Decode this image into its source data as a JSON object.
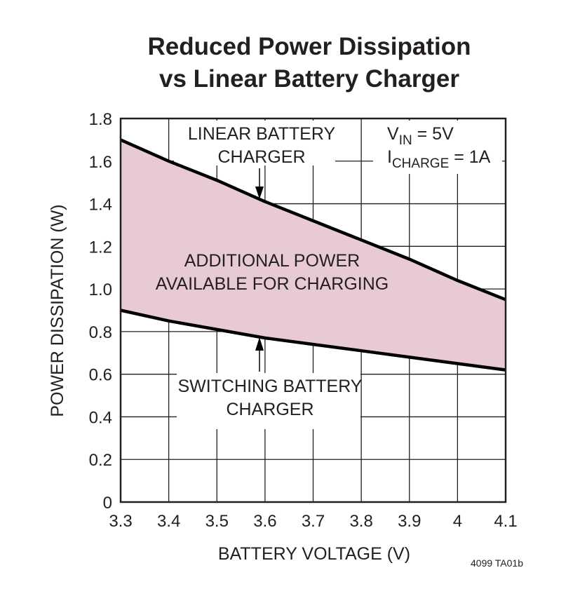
{
  "chart_data": {
    "type": "area",
    "title": [
      "Reduced Power Dissipation",
      "vs Linear Battery Charger"
    ],
    "xlabel": "BATTERY VOLTAGE (V)",
    "ylabel": "POWER DISSIPATION (W)",
    "xlim": [
      3.3,
      4.1
    ],
    "ylim": [
      0,
      1.8
    ],
    "grid": true,
    "x_ticks": [
      "3.3",
      "3.4",
      "3.5",
      "3.6",
      "3.7",
      "3.8",
      "3.9",
      "4",
      "4.1"
    ],
    "y_ticks": [
      "0",
      "0.2",
      "0.4",
      "0.6",
      "0.8",
      "1.0",
      "1.2",
      "1.4",
      "1.6",
      "1.8"
    ],
    "x": [
      3.3,
      3.4,
      3.5,
      3.6,
      3.7,
      3.8,
      3.9,
      4.0,
      4.1
    ],
    "series": [
      {
        "name": "LINEAR BATTERY CHARGER",
        "values": [
          1.7,
          1.6,
          1.51,
          1.41,
          1.32,
          1.23,
          1.14,
          1.04,
          0.95
        ]
      },
      {
        "name": "SWITCHING BATTERY CHARGER",
        "values": [
          0.9,
          0.85,
          0.81,
          0.77,
          0.74,
          0.71,
          0.68,
          0.65,
          0.62
        ]
      }
    ],
    "fill_color": "#e8cad3",
    "annotations": {
      "linear": [
        "LINEAR BATTERY",
        "CHARGER"
      ],
      "switching": [
        "SWITCHING BATTERY",
        "CHARGER"
      ],
      "region": [
        "ADDITIONAL POWER",
        "AVAILABLE FOR CHARGING"
      ],
      "vin_prefix": "V",
      "vin_sub": "IN",
      "vin_suffix": " = 5V",
      "icharge_prefix": "I",
      "icharge_sub": "CHARGE",
      "icharge_suffix": " = 1A"
    },
    "figure_id": "4099 TA01b"
  }
}
